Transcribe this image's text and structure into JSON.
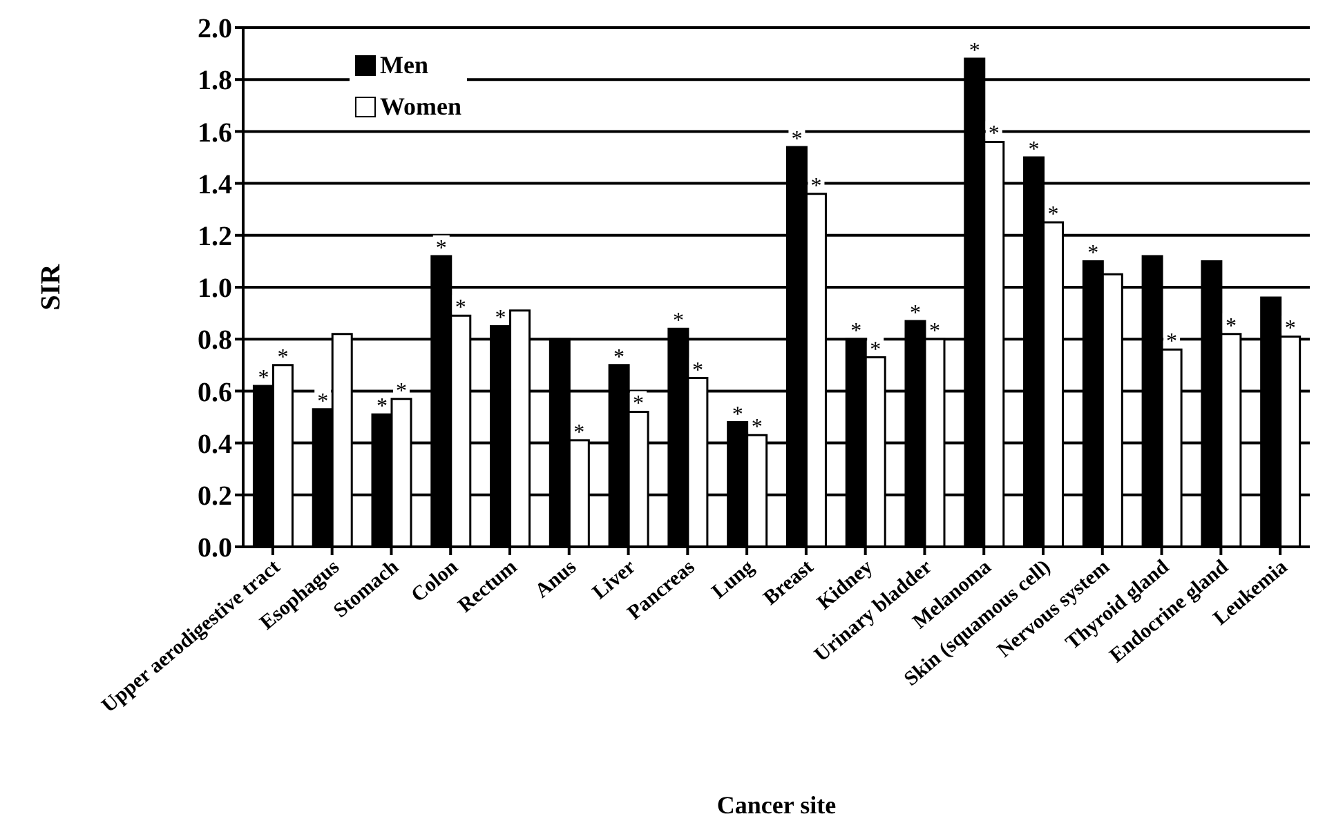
{
  "chart_data": {
    "type": "bar",
    "xlabel": "Cancer site",
    "ylabel": "SIR",
    "categories": [
      "Upper aerodigestive tract",
      "Esophagus",
      "Stomach",
      "Colon",
      "Rectum",
      "Anus",
      "Liver",
      "Pancreas",
      "Lung",
      "Breast",
      "Kidney",
      "Urinary bladder",
      "Melanoma",
      "Skin (squamous cell)",
      "Nervous system",
      "Thyroid gland",
      "Endocrine gland",
      "Leukemia"
    ],
    "series": [
      {
        "name": "Men",
        "color": "#000000",
        "values": [
          0.62,
          0.53,
          0.51,
          1.12,
          0.85,
          0.8,
          0.7,
          0.84,
          0.48,
          1.54,
          0.8,
          0.87,
          1.88,
          1.5,
          1.1,
          1.12,
          1.1,
          0.96
        ],
        "value_labels": [
          "*",
          "*",
          "*",
          "*",
          "*",
          null,
          "*",
          "*",
          "*",
          "*",
          "*",
          "*",
          "*",
          "*",
          "*",
          null,
          null,
          null
        ]
      },
      {
        "name": "Women",
        "color": "#ffffff",
        "values": [
          0.7,
          0.82,
          0.57,
          0.89,
          0.91,
          0.41,
          0.52,
          0.65,
          0.43,
          1.36,
          0.73,
          0.8,
          1.56,
          1.25,
          1.05,
          0.76,
          0.82,
          0.81
        ],
        "value_labels": [
          "*",
          null,
          "*",
          "*",
          null,
          "*",
          "*",
          "*",
          "*",
          "*",
          "*",
          "*",
          "*",
          "*",
          null,
          "*",
          "*",
          "*"
        ]
      }
    ],
    "ylim": [
      0,
      2
    ],
    "yticks": [
      {
        "value": 0,
        "label": "0.0"
      },
      {
        "value": 0.2,
        "label": "0.2"
      },
      {
        "value": 0.4,
        "label": "0.4"
      },
      {
        "value": 0.6,
        "label": "0.6"
      },
      {
        "value": 0.8,
        "label": "0.8"
      },
      {
        "value": 1,
        "label": "1.0"
      },
      {
        "value": 1.2,
        "label": "1.2"
      },
      {
        "value": 1.4,
        "label": "1.4"
      },
      {
        "value": 1.6,
        "label": "1.6"
      },
      {
        "value": 1.8,
        "label": "1.8"
      },
      {
        "value": 2,
        "label": "2.0"
      }
    ],
    "grid": "y",
    "legend": "top left"
  }
}
